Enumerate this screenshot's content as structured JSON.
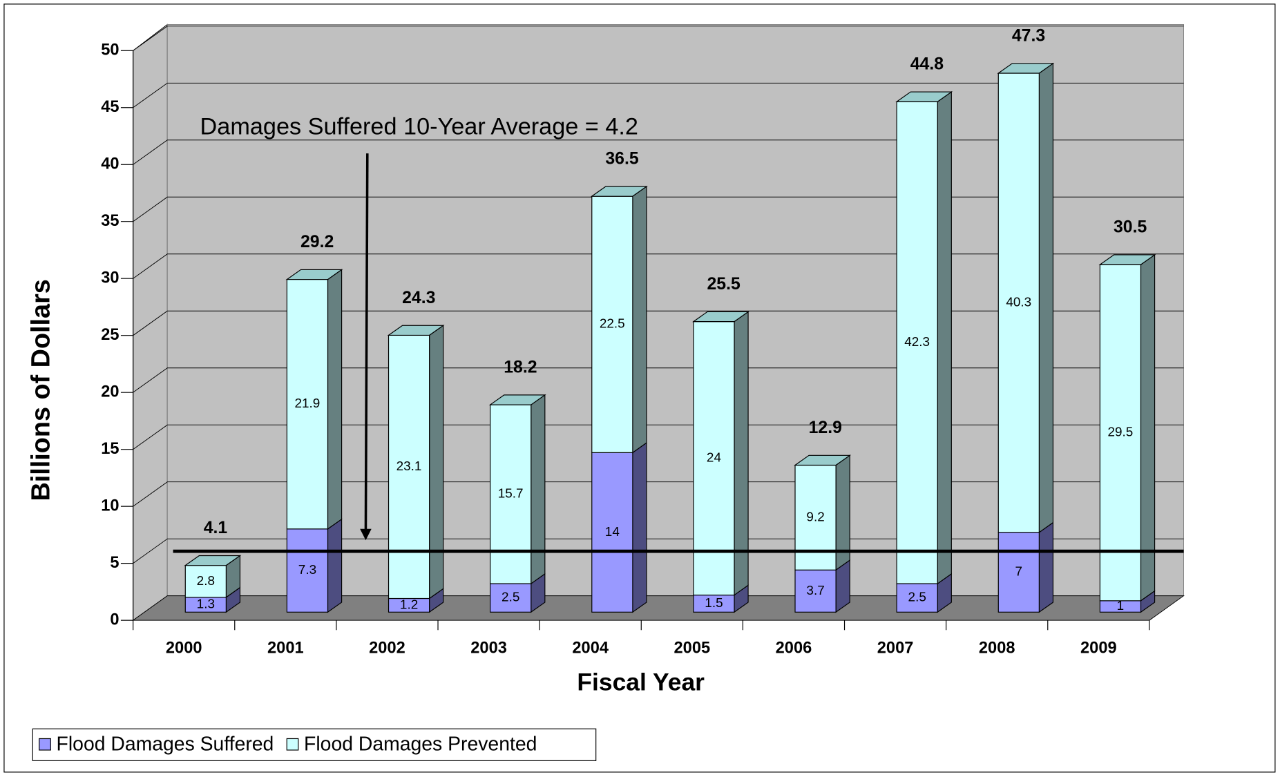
{
  "chart_data": {
    "type": "stacked_bar_3d",
    "x_label": "Fiscal Year",
    "y_label": "Billions of Dollars",
    "categories": [
      "2000",
      "2001",
      "2002",
      "2003",
      "2004",
      "2005",
      "2006",
      "2007",
      "2008",
      "2009"
    ],
    "series": [
      {
        "name": "Flood Damages Suffered",
        "color": "#9999ff",
        "side_color": "#4d4d80",
        "values": [
          1.3,
          7.3,
          1.2,
          2.5,
          14,
          1.5,
          3.7,
          2.5,
          7,
          1
        ]
      },
      {
        "name": "Flood Damages Prevented",
        "color": "#ccffff",
        "side_color": "#668080",
        "values": [
          2.8,
          21.9,
          23.1,
          15.7,
          22.5,
          24,
          9.2,
          42.3,
          40.3,
          29.5
        ]
      }
    ],
    "totals": [
      4.1,
      29.2,
      24.3,
      18.2,
      36.5,
      25.5,
      12.9,
      44.8,
      47.3,
      30.5
    ],
    "annotation": "Damages Suffered 10-Year Average = 4.2",
    "average": 4.2,
    "ylim": [
      0,
      50
    ],
    "yticks": [
      0,
      5,
      10,
      15,
      20,
      25,
      30,
      35,
      40,
      45,
      50
    ],
    "grid": true,
    "legend": "bottom-left"
  }
}
